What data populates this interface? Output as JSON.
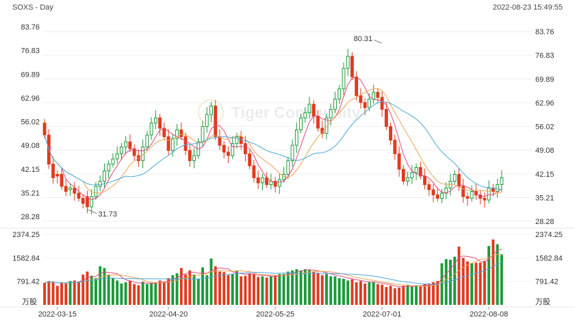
{
  "header": {
    "symbol_timeframe": "SOXS - Day",
    "timestamp": "2022-08-23 15:49:55"
  },
  "watermark": {
    "text": "Tiger Community"
  },
  "colors": {
    "up": "#1a9a3a",
    "down": "#e03a1e",
    "ma1": "#e0457b",
    "ma2": "#f0a050",
    "ma3": "#4aa8d8",
    "vol_ma1": "#e0457b",
    "vol_ma2": "#f0a050",
    "vol_ma3": "#4aa8d8"
  },
  "chart_data": {
    "type": "candlestick",
    "price_axis": {
      "ticks": [
        "83.76",
        "76.83",
        "69.89",
        "62.96",
        "56.02",
        "49.08",
        "42.15",
        "35.21",
        "28.28"
      ],
      "range": [
        28.28,
        83.76
      ]
    },
    "volume_axis": {
      "ticks": [
        "2374.25",
        "1582.84",
        "791.42"
      ],
      "unit": "万股",
      "range": [
        0,
        2374.25
      ]
    },
    "x_labels": [
      "2022-03-15",
      "2022-04-20",
      "2022-05-25",
      "2022-07-01",
      "2022-08-08"
    ],
    "x_label_index": [
      3,
      29,
      54,
      79,
      104
    ],
    "annotations": [
      {
        "label": "80.31",
        "index": 79,
        "value": 80.31,
        "type": "high"
      },
      {
        "label": "31.73",
        "index": 10,
        "value": 31.73,
        "type": "low"
      }
    ],
    "ma_lines": [
      "MA5",
      "MA10",
      "MA20"
    ],
    "close": [
      53.5,
      45.0,
      41.0,
      41.5,
      38.5,
      37.0,
      38.0,
      36.5,
      35.0,
      33.5,
      32.5,
      35.5,
      38.5,
      40.0,
      43.0,
      45.0,
      46.5,
      48.0,
      50.0,
      51.5,
      49.5,
      47.5,
      46.0,
      50.0,
      53.5,
      57.0,
      58.5,
      55.5,
      53.0,
      49.0,
      52.5,
      55.0,
      53.0,
      49.0,
      46.0,
      47.5,
      51.5,
      56.0,
      59.5,
      62.0,
      53.0,
      50.5,
      48.5,
      47.5,
      51.0,
      53.0,
      51.0,
      48.0,
      44.5,
      41.0,
      39.5,
      41.0,
      39.0,
      40.0,
      38.5,
      40.5,
      42.0,
      46.0,
      50.5,
      55.0,
      58.5,
      60.0,
      62.5,
      59.0,
      55.5,
      54.0,
      58.5,
      61.0,
      64.0,
      67.0,
      73.0,
      76.5,
      70.5,
      65.0,
      63.0,
      61.5,
      64.0,
      66.0,
      64.5,
      61.0,
      56.0,
      52.0,
      48.0,
      43.5,
      40.0,
      41.0,
      42.5,
      44.0,
      41.5,
      39.0,
      37.5,
      36.0,
      35.0,
      36.5,
      38.0,
      40.0,
      42.0,
      38.5,
      35.5,
      35.0,
      37.0,
      36.0,
      35.0,
      34.5,
      38.0,
      37.0,
      39.0,
      41.0
    ],
    "open": [
      57.0,
      53.5,
      45.0,
      42.0,
      42.0,
      38.5,
      37.5,
      38.0,
      36.5,
      35.0,
      35.5,
      32.5,
      35.5,
      38.5,
      40.0,
      43.0,
      45.0,
      46.5,
      48.0,
      50.0,
      51.5,
      49.5,
      47.5,
      46.0,
      50.0,
      53.5,
      57.0,
      58.5,
      55.5,
      53.0,
      49.0,
      52.5,
      55.0,
      53.0,
      49.0,
      46.0,
      47.5,
      51.5,
      56.0,
      59.5,
      62.0,
      53.0,
      50.5,
      48.5,
      47.5,
      51.0,
      53.0,
      51.0,
      48.0,
      44.5,
      41.0,
      39.5,
      41.0,
      39.0,
      40.0,
      38.5,
      40.5,
      42.0,
      46.0,
      50.5,
      55.0,
      58.5,
      60.0,
      62.5,
      59.0,
      55.5,
      54.0,
      58.5,
      61.0,
      64.0,
      67.0,
      73.0,
      76.5,
      70.5,
      65.0,
      63.0,
      61.5,
      64.0,
      66.0,
      64.5,
      61.0,
      56.0,
      52.0,
      48.0,
      43.5,
      40.0,
      41.0,
      42.5,
      44.0,
      41.5,
      39.0,
      37.5,
      36.0,
      35.0,
      36.5,
      38.0,
      40.0,
      42.0,
      38.5,
      35.5,
      35.0,
      37.0,
      36.0,
      35.0,
      34.5,
      38.0,
      37.0,
      39.0
    ],
    "volume": [
      740,
      800,
      780,
      640,
      760,
      720,
      800,
      820,
      780,
      1020,
      1120,
      980,
      900,
      1300,
      1240,
      1020,
      900,
      820,
      720,
      760,
      820,
      700,
      660,
      780,
      700,
      740,
      760,
      820,
      780,
      900,
      1000,
      1060,
      1240,
      1020,
      1160,
      1020,
      880,
      1260,
      1000,
      1560,
      1300,
      1120,
      1100,
      1000,
      1040,
      1160,
      960,
      980,
      1060,
      1040,
      940,
      960,
      920,
      960,
      980,
      1040,
      1040,
      1120,
      1160,
      1200,
      1160,
      1200,
      1180,
      1120,
      1080,
      1000,
      1040,
      960,
      960,
      900,
      880,
      820,
      860,
      760,
      800,
      720,
      760,
      780,
      700,
      680,
      600,
      640,
      560,
      580,
      640,
      680,
      620,
      660,
      620,
      700,
      720,
      760,
      800,
      1400,
      1540,
      1520,
      1620,
      1960,
      1580,
      1460,
      1400,
      1420,
      1420,
      1480,
      1980,
      2200,
      2040,
      1700
    ]
  },
  "footer": {
    "left_unit": "万股",
    "right_unit": "万股"
  }
}
